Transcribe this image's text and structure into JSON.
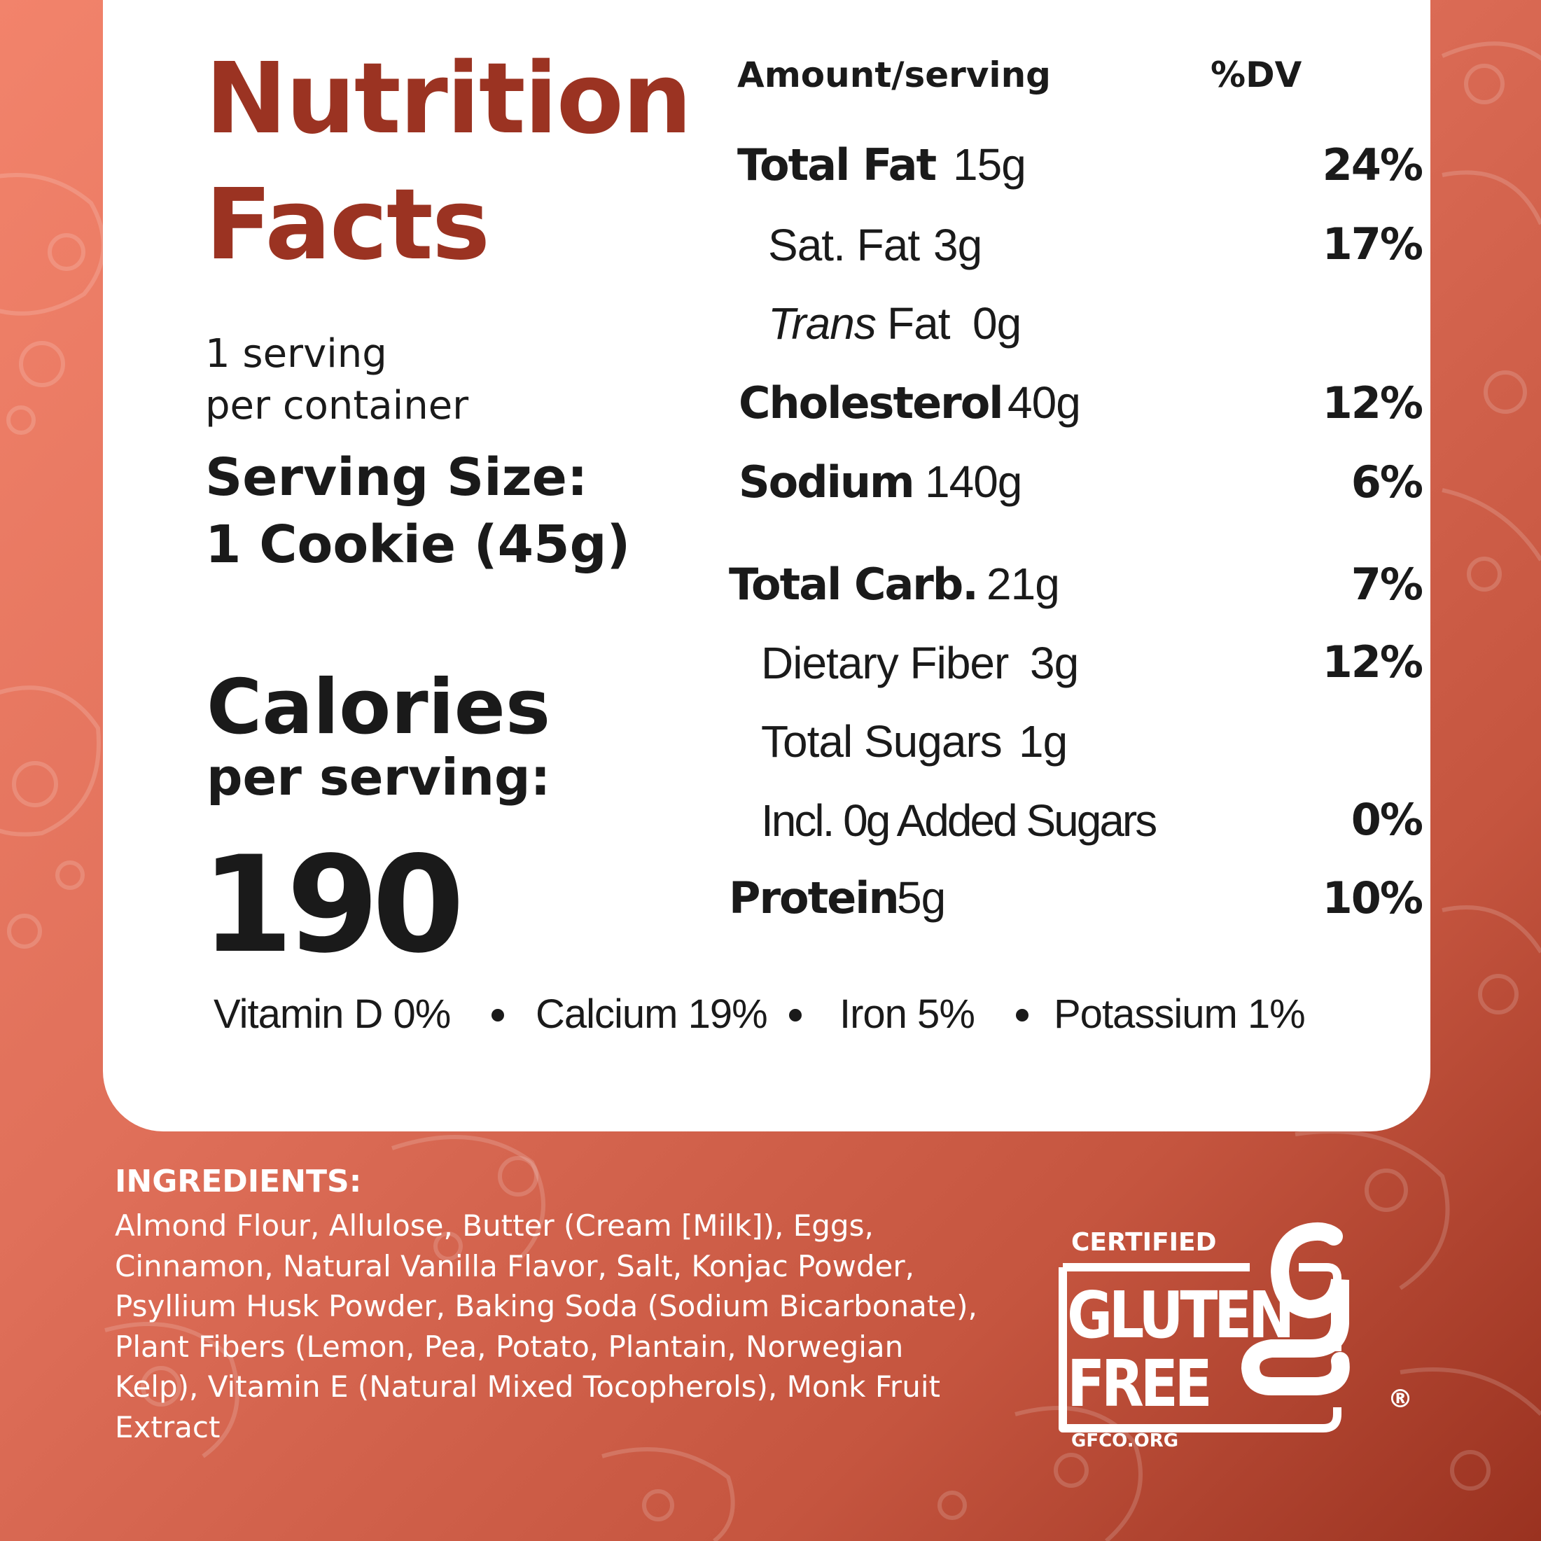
{
  "title": {
    "line1": "Nutrition",
    "line2": "Facts"
  },
  "servings": {
    "line1": "1 serving",
    "line2": "per container"
  },
  "serving_size": {
    "line1": "Serving Size:",
    "line2": "1 Cookie (45g)"
  },
  "calories": {
    "label": "Calories",
    "sublabel": "per serving:",
    "value": "190"
  },
  "table_header": {
    "amount": "Amount/serving",
    "dv": "%DV"
  },
  "nutrients": [
    {
      "name": "Total Fat",
      "amount": "15g",
      "dv": "24%"
    },
    {
      "name": "Sat. Fat",
      "amount": "3g",
      "dv": "17%"
    },
    {
      "name_italic": "Trans",
      "name": "Fat",
      "amount": "0g",
      "dv": ""
    },
    {
      "name": "Cholesterol",
      "amount": "40g",
      "dv": "12%"
    },
    {
      "name": "Sodium",
      "amount": "140g",
      "dv": "6%"
    },
    {
      "name": "Total Carb.",
      "amount": "21g",
      "dv": "7%"
    },
    {
      "name": "Dietary Fiber",
      "amount": "3g",
      "dv": "12%"
    },
    {
      "name": "Total Sugars",
      "amount": "1g",
      "dv": ""
    },
    {
      "name": "Incl. 0g Added Sugars",
      "amount": "",
      "dv": "0%"
    },
    {
      "name": "Protein",
      "amount": "5g",
      "dv": "10%"
    }
  ],
  "vitamins": [
    "Vitamin D 0%",
    "Calcium 19%",
    "Iron 5%",
    "Potassium 1%"
  ],
  "ingredients": {
    "title": "INGREDIENTS:",
    "lines": [
      "Almond Flour, Allulose, Butter (Cream [Milk]), Eggs,",
      "Cinnamon, Natural Vanilla Flavor, Salt, Konjac Powder,",
      "Psyllium Husk Powder, Baking Soda (Sodium Bicarbonate),",
      "Plant Fibers (Lemon, Pea, Potato, Plantain, Norwegian",
      "Kelp), Vitamin E (Natural Mixed Tocopherols), Monk Fruit",
      "Extract"
    ]
  },
  "badge": {
    "certified": "CERTIFIED",
    "gluten": "GLUTEN",
    "free": "FREE",
    "url": "GFCO.ORG",
    "registered": "®"
  },
  "colors": {
    "title": "#9b3322",
    "text": "#1a1a1a",
    "card": "#ffffff"
  }
}
